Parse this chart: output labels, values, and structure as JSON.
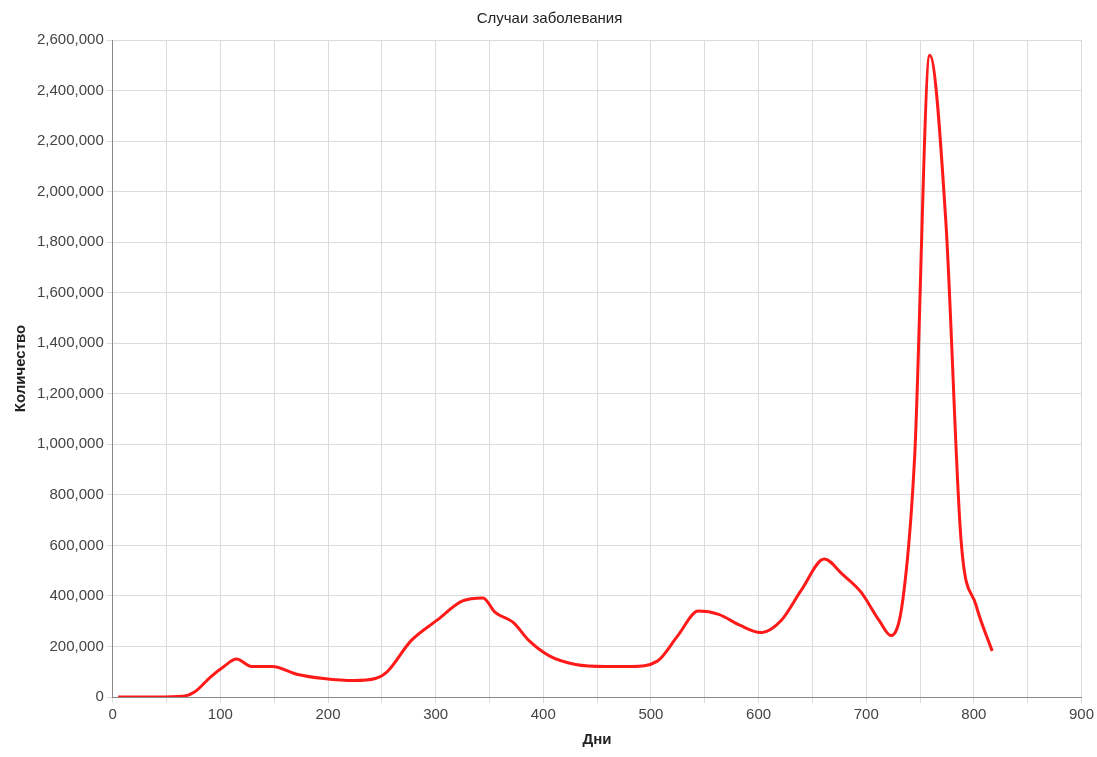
{
  "chart_data": {
    "type": "line",
    "title": "Случаи заболевания",
    "xlabel": "Дни",
    "ylabel": "Количество",
    "xlim": [
      0,
      900
    ],
    "xticks": [
      0,
      {
        "value": 50,
        "label": null
      },
      100,
      {
        "value": 150,
        "label": null
      },
      200,
      {
        "value": 250,
        "label": null
      },
      300,
      {
        "value": 350,
        "label": null
      },
      400,
      {
        "value": 450,
        "label": null
      },
      500,
      {
        "value": 550,
        "label": null
      },
      600,
      {
        "value": 650,
        "label": null
      },
      700,
      {
        "value": 750,
        "label": null
      },
      800,
      {
        "value": 850,
        "label": null
      },
      900
    ],
    "ylim": [
      0,
      2600000
    ],
    "yticks": [
      0,
      {
        "value": 200000,
        "label": "200,000"
      },
      {
        "value": 400000,
        "label": "400,000"
      },
      {
        "value": 600000,
        "label": "600,000"
      },
      {
        "value": 800000,
        "label": "800,000"
      },
      {
        "value": 1000000,
        "label": "1,000,000"
      },
      {
        "value": 1200000,
        "label": "1,200,000"
      },
      {
        "value": 1400000,
        "label": "1,400,000"
      },
      {
        "value": 1600000,
        "label": "1,600,000"
      },
      {
        "value": 1800000,
        "label": "1,800,000"
      },
      {
        "value": 2000000,
        "label": "2,000,000"
      },
      {
        "value": 2200000,
        "label": "2,200,000"
      },
      {
        "value": 2400000,
        "label": "2,400,000"
      },
      {
        "value": 2600000,
        "label": "2,600,000"
      }
    ],
    "grid": true,
    "legend": false,
    "marker": "none",
    "line_style": "solid",
    "series": [
      {
        "color": "#ff1a1a",
        "x": [
          5,
          40,
          65,
          76,
          91,
          103,
          115,
          129,
          148,
          172,
          196,
          224,
          244,
          255,
          277,
          301,
          325,
          344,
          355,
          372,
          387,
          406,
          430,
          458,
          482,
          506,
          525,
          544,
          563,
          583,
          602,
          621,
          640,
          661,
          678,
          695,
          712,
          723,
          734,
          745,
          759,
          774,
          788,
          802,
          817
        ],
        "values": [
          0,
          0,
          3000,
          20000,
          80000,
          120000,
          150000,
          121000,
          121000,
          89000,
          73000,
          65000,
          73000,
          100000,
          222000,
          303000,
          380000,
          392000,
          336000,
          295000,
          222000,
          162000,
          129000,
          121000,
          121000,
          142000,
          243000,
          340000,
          327000,
          283000,
          255000,
          303000,
          425000,
          546000,
          485000,
          416000,
          303000,
          243000,
          384000,
          950000,
          2540000,
          1880000,
          627000,
          364000,
          182000
        ]
      }
    ]
  }
}
